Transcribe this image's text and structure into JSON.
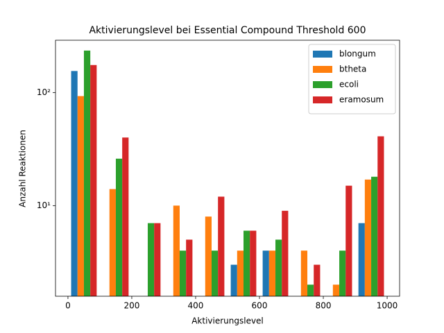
{
  "chart_data": {
    "type": "histogram",
    "title": "Aktivierungslevel bei Essential Compound Threshold 600",
    "xlabel": "Aktivierungslevel",
    "ylabel": "Anzahl Reaktionen",
    "bins": [
      0,
      100,
      200,
      300,
      400,
      500,
      600,
      700,
      800,
      900,
      1000
    ],
    "series": [
      {
        "name": "blongum",
        "color": "#1f77b4",
        "values": [
          155,
          0,
          0,
          0,
          0,
          3,
          4,
          0,
          0,
          7
        ]
      },
      {
        "name": "btheta",
        "color": "#ff7f0e",
        "values": [
          93,
          14,
          0,
          10,
          8,
          4,
          4,
          4,
          2,
          17
        ]
      },
      {
        "name": "ecoli",
        "color": "#2ca02c",
        "values": [
          235,
          26,
          7,
          4,
          4,
          6,
          5,
          2,
          4,
          18
        ]
      },
      {
        "name": "eramosum",
        "color": "#d62728",
        "values": [
          175,
          40,
          7,
          5,
          12,
          6,
          9,
          3,
          15,
          41
        ]
      }
    ],
    "xlim": [
      -39,
      1039
    ],
    "xticks": [
      0,
      200,
      400,
      600,
      800,
      1000
    ],
    "ylim": [
      1.58,
      290
    ],
    "yscale": "log",
    "yticks": [
      {
        "value": 10,
        "label": "10¹"
      },
      {
        "value": 100,
        "label": "10²"
      }
    ],
    "legend": "upper right"
  }
}
